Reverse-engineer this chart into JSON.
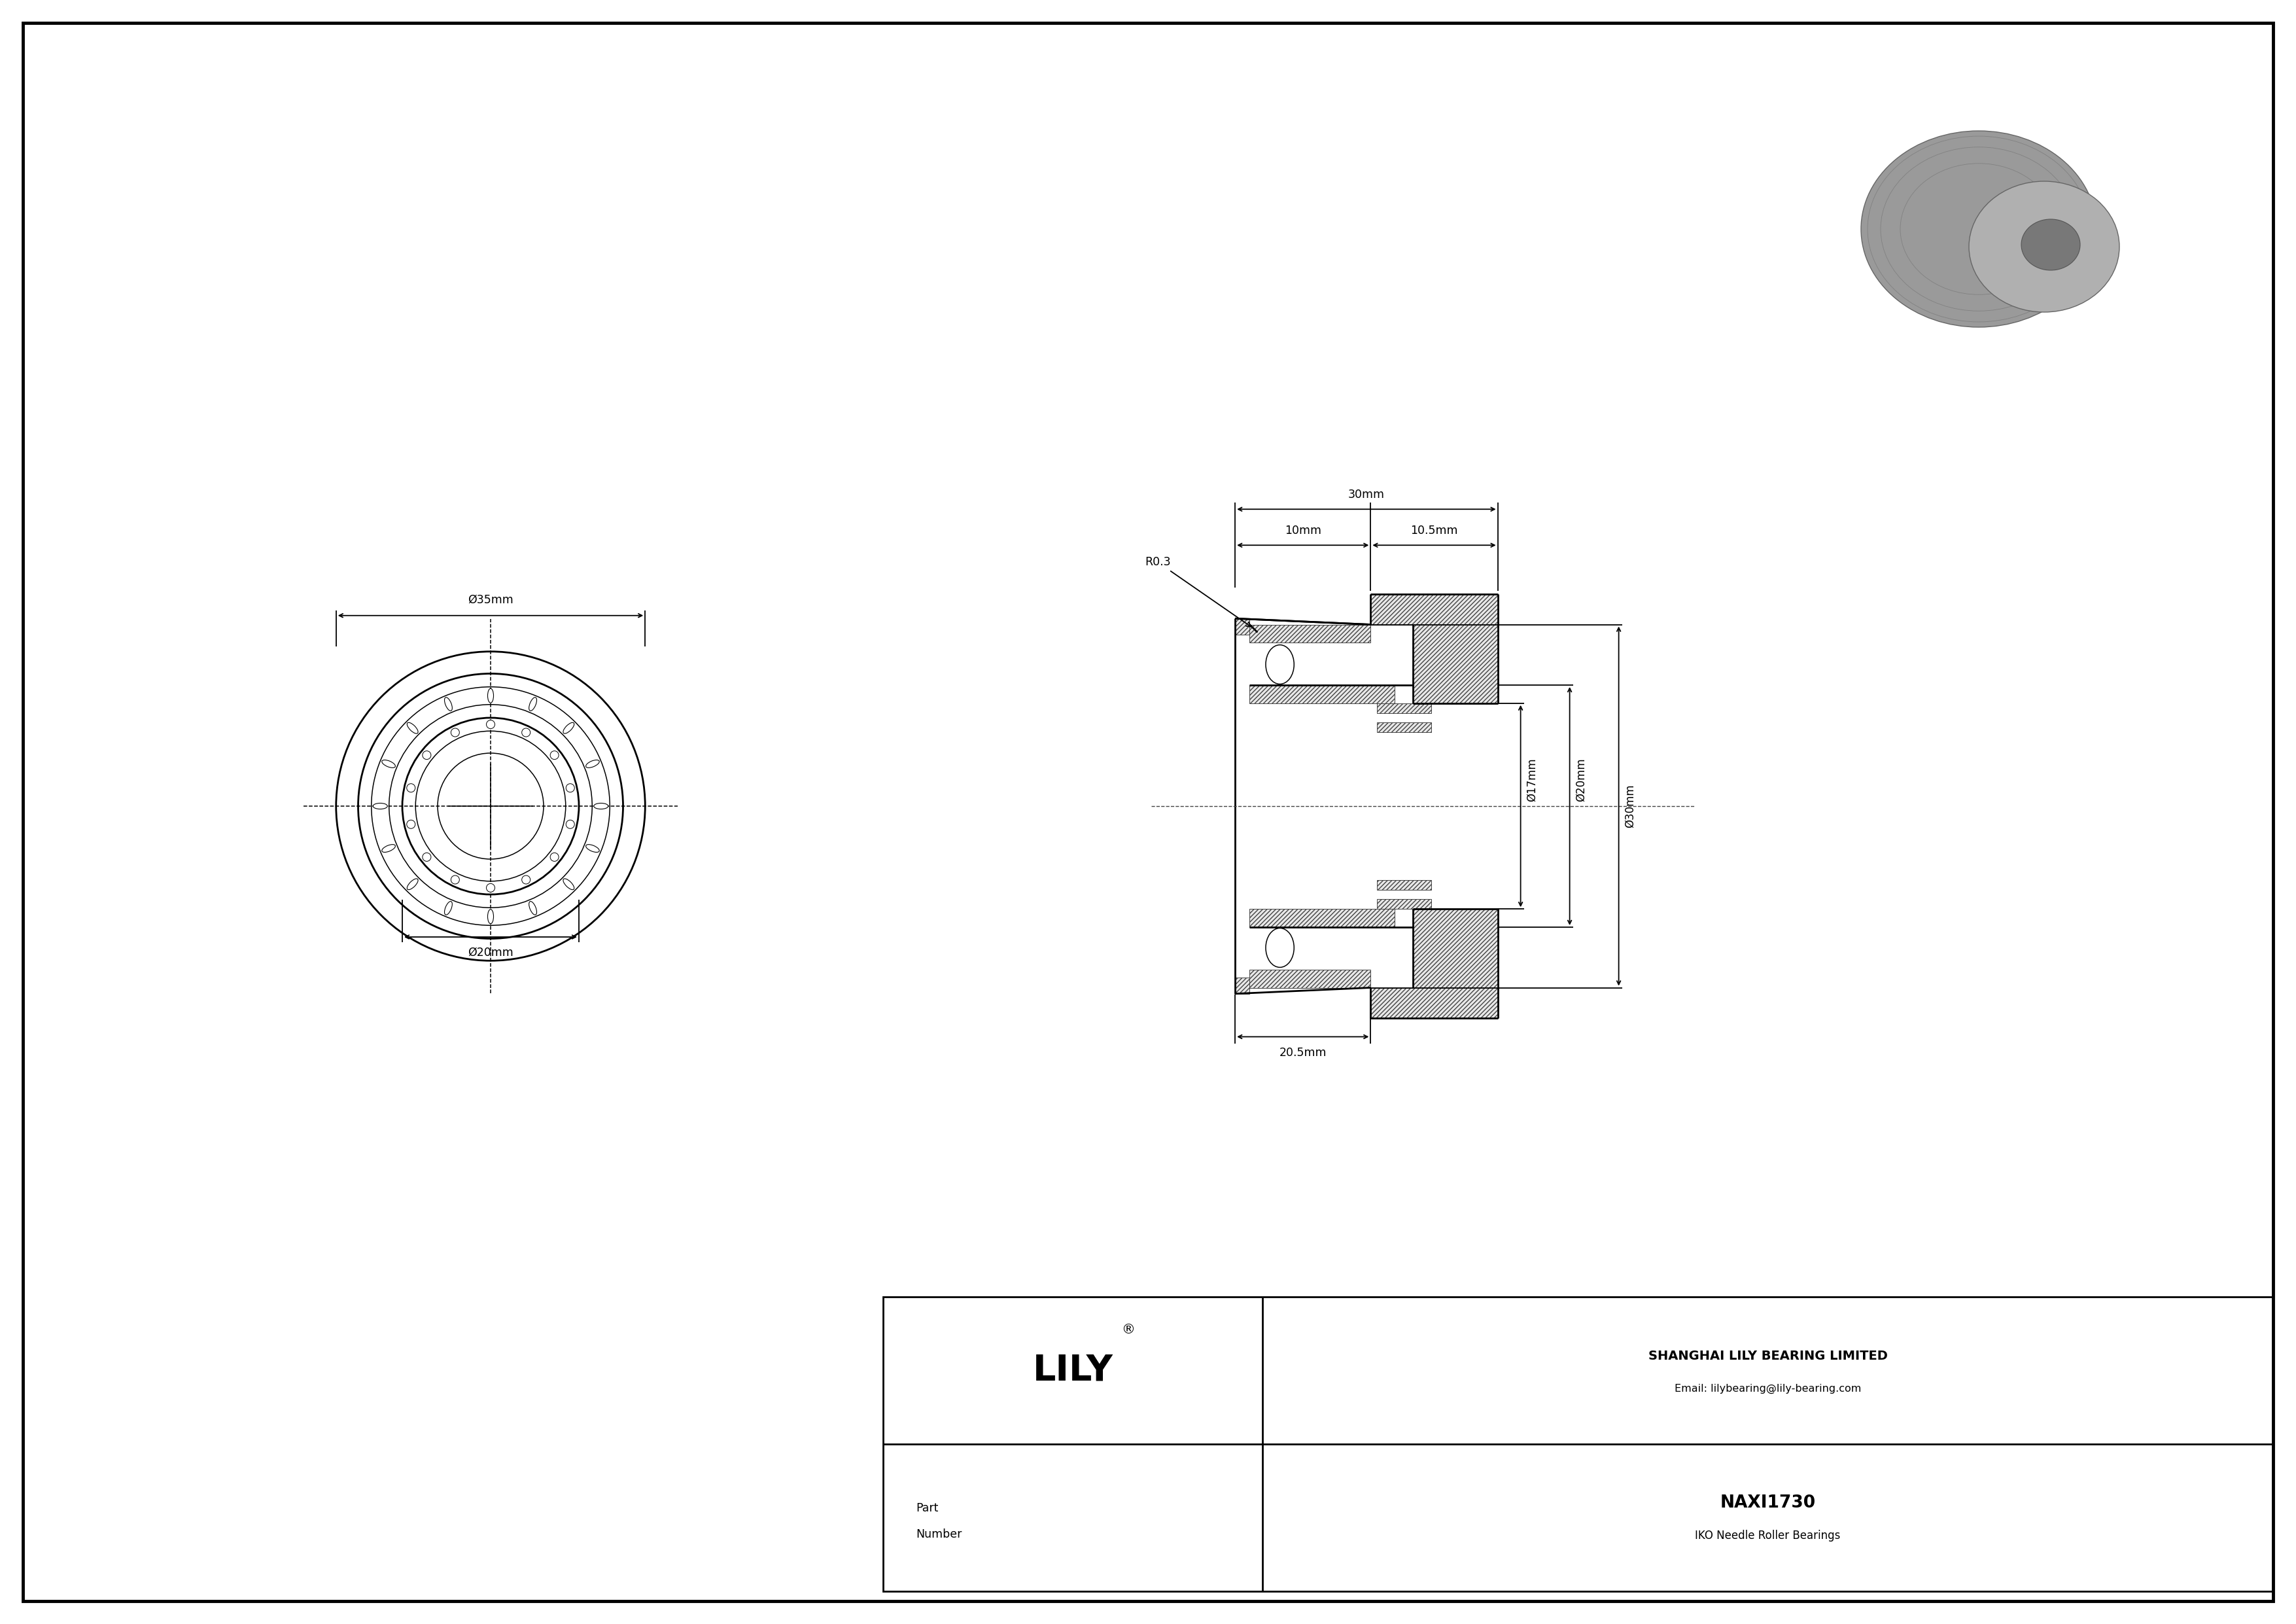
{
  "bg_color": "#ffffff",
  "line_color": "#000000",
  "company_name": "SHANGHAI LILY BEARING LIMITED",
  "company_email": "Email: lilybearing@lily-bearing.com",
  "part_number": "NAXI1730",
  "part_desc": "IKO Needle Roller Bearings",
  "brand": "LILY",
  "dim_35mm": "Ø35mm",
  "dim_20mm": "Ø20mm",
  "dim_17mm": "Ø17mm",
  "dim_20mm_r": "Ø20mm",
  "dim_30mm": "Ø30mm",
  "dim_10mm": "10mm",
  "dim_105mm": "10.5mm",
  "dim_30mm_top": "30mm",
  "dim_205mm": "20.5mm",
  "dim_r03": "R0.3"
}
